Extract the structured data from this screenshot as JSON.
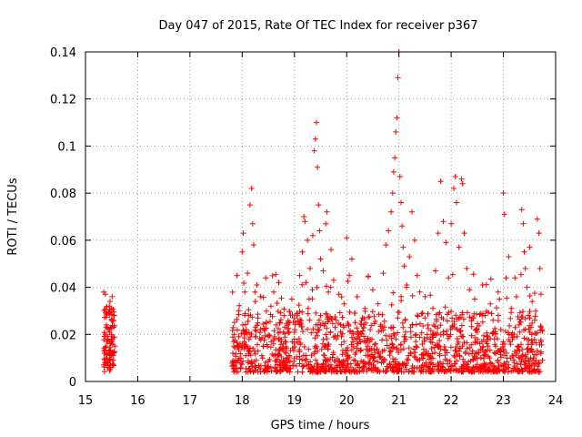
{
  "chart_data": {
    "type": "scatter",
    "title": "Day 047 of 2015, Rate Of TEC Index for receiver p367",
    "xlabel": "GPS time / hours",
    "ylabel": "ROTI / TECUs",
    "xlim": [
      15,
      24
    ],
    "ylim": [
      0,
      0.14
    ],
    "x_ticks": [
      15,
      16,
      17,
      18,
      19,
      20,
      21,
      22,
      23,
      24
    ],
    "x_tick_labels": [
      "15",
      "16",
      "17",
      "18",
      "19",
      "20",
      "21",
      "22",
      "23",
      "24"
    ],
    "y_ticks": [
      0,
      0.02,
      0.04,
      0.06,
      0.08,
      0.1,
      0.12,
      0.14
    ],
    "y_tick_labels": [
      "0",
      "0.02",
      "0.04",
      "0.06",
      "0.08",
      "0.1",
      "0.12",
      "0.14"
    ],
    "grid": true,
    "marker": "+",
    "color": "#ff0000",
    "series": [
      {
        "name": "ROTI",
        "points": [
          [
            15.35,
            0.038
          ],
          [
            15.36,
            0.012
          ],
          [
            15.37,
            0.008
          ],
          [
            15.38,
            0.02
          ],
          [
            15.39,
            0.015
          ],
          [
            15.4,
            0.024
          ],
          [
            15.41,
            0.01
          ],
          [
            15.42,
            0.006
          ],
          [
            15.43,
            0.018
          ],
          [
            15.44,
            0.029
          ],
          [
            15.45,
            0.013
          ],
          [
            15.46,
            0.021
          ],
          [
            15.47,
            0.034
          ],
          [
            15.48,
            0.016
          ],
          [
            15.49,
            0.011
          ],
          [
            15.5,
            0.026
          ],
          [
            15.51,
            0.036
          ],
          [
            15.52,
            0.019
          ],
          [
            15.53,
            0.009
          ],
          [
            15.54,
            0.023
          ],
          [
            15.55,
            0.028
          ],
          [
            15.56,
            0.015
          ],
          [
            15.38,
            0.037
          ],
          [
            15.44,
            0.022
          ],
          [
            15.5,
            0.031
          ],
          [
            17.82,
            0.012
          ],
          [
            17.85,
            0.02
          ],
          [
            17.88,
            0.008
          ],
          [
            17.9,
            0.045
          ],
          [
            17.93,
            0.03
          ],
          [
            17.96,
            0.016
          ],
          [
            18.0,
            0.055
          ],
          [
            18.02,
            0.063
          ],
          [
            18.05,
            0.038
          ],
          [
            18.08,
            0.022
          ],
          [
            18.1,
            0.046
          ],
          [
            18.12,
            0.013
          ],
          [
            18.15,
            0.075
          ],
          [
            18.18,
            0.082
          ],
          [
            18.2,
            0.067
          ],
          [
            18.22,
            0.058
          ],
          [
            18.25,
            0.034
          ],
          [
            18.28,
            0.041
          ],
          [
            18.3,
            0.027
          ],
          [
            18.35,
            0.036
          ],
          [
            18.4,
            0.015
          ],
          [
            18.45,
            0.044
          ],
          [
            18.5,
            0.019
          ],
          [
            18.55,
            0.032
          ],
          [
            18.6,
            0.011
          ],
          [
            18.65,
            0.024
          ],
          [
            18.7,
            0.042
          ],
          [
            18.75,
            0.017
          ],
          [
            18.8,
            0.028
          ],
          [
            18.85,
            0.014
          ],
          [
            18.9,
            0.021
          ],
          [
            18.95,
            0.035
          ],
          [
            19.0,
            0.018
          ],
          [
            19.05,
            0.029
          ],
          [
            19.1,
            0.045
          ],
          [
            19.15,
            0.055
          ],
          [
            19.18,
            0.07
          ],
          [
            19.2,
            0.068
          ],
          [
            19.22,
            0.042
          ],
          [
            19.25,
            0.06
          ],
          [
            19.28,
            0.035
          ],
          [
            19.3,
            0.048
          ],
          [
            19.35,
            0.062
          ],
          [
            19.38,
            0.098
          ],
          [
            19.4,
            0.103
          ],
          [
            19.42,
            0.11
          ],
          [
            19.44,
            0.091
          ],
          [
            19.46,
            0.075
          ],
          [
            19.48,
            0.064
          ],
          [
            19.5,
            0.052
          ],
          [
            19.55,
            0.047
          ],
          [
            19.6,
            0.067
          ],
          [
            19.62,
            0.072
          ],
          [
            19.65,
            0.038
          ],
          [
            19.7,
            0.056
          ],
          [
            19.75,
            0.043
          ],
          [
            19.8,
            0.026
          ],
          [
            19.85,
            0.037
          ],
          [
            19.9,
            0.019
          ],
          [
            19.95,
            0.033
          ],
          [
            20.0,
            0.061
          ],
          [
            20.05,
            0.045
          ],
          [
            20.1,
            0.052
          ],
          [
            20.15,
            0.029
          ],
          [
            20.2,
            0.036
          ],
          [
            20.25,
            0.018
          ],
          [
            20.3,
            0.027
          ],
          [
            20.35,
            0.031
          ],
          [
            20.4,
            0.015
          ],
          [
            20.45,
            0.022
          ],
          [
            20.5,
            0.039
          ],
          [
            20.55,
            0.016
          ],
          [
            20.6,
            0.033
          ],
          [
            20.65,
            0.024
          ],
          [
            20.7,
            0.046
          ],
          [
            20.75,
            0.058
          ],
          [
            20.8,
            0.064
          ],
          [
            20.85,
            0.072
          ],
          [
            20.88,
            0.08
          ],
          [
            20.9,
            0.089
          ],
          [
            20.92,
            0.095
          ],
          [
            20.94,
            0.106
          ],
          [
            20.96,
            0.112
          ],
          [
            20.98,
            0.129
          ],
          [
            21.0,
            0.14
          ],
          [
            21.02,
            0.087
          ],
          [
            21.04,
            0.076
          ],
          [
            21.06,
            0.066
          ],
          [
            21.08,
            0.057
          ],
          [
            21.1,
            0.049
          ],
          [
            21.15,
            0.041
          ],
          [
            21.2,
            0.053
          ],
          [
            21.25,
            0.072
          ],
          [
            21.3,
            0.06
          ],
          [
            21.35,
            0.045
          ],
          [
            21.4,
            0.038
          ],
          [
            21.45,
            0.029
          ],
          [
            21.5,
            0.036
          ],
          [
            21.55,
            0.024
          ],
          [
            21.6,
            0.018
          ],
          [
            21.65,
            0.031
          ],
          [
            21.7,
            0.047
          ],
          [
            21.75,
            0.063
          ],
          [
            21.8,
            0.085
          ],
          [
            21.85,
            0.068
          ],
          [
            21.9,
            0.059
          ],
          [
            21.95,
            0.044
          ],
          [
            22.0,
            0.067
          ],
          [
            22.05,
            0.082
          ],
          [
            22.08,
            0.087
          ],
          [
            22.1,
            0.076
          ],
          [
            22.15,
            0.057
          ],
          [
            22.2,
            0.086
          ],
          [
            22.22,
            0.084
          ],
          [
            22.25,
            0.063
          ],
          [
            22.3,
            0.048
          ],
          [
            22.35,
            0.039
          ],
          [
            22.4,
            0.027
          ],
          [
            22.45,
            0.035
          ],
          [
            22.5,
            0.021
          ],
          [
            22.55,
            0.016
          ],
          [
            22.6,
            0.041
          ],
          [
            22.65,
            0.028
          ],
          [
            22.7,
            0.019
          ],
          [
            22.75,
            0.033
          ],
          [
            22.8,
            0.026
          ],
          [
            22.85,
            0.015
          ],
          [
            22.9,
            0.038
          ],
          [
            22.95,
            0.022
          ],
          [
            23.0,
            0.08
          ],
          [
            23.02,
            0.071
          ],
          [
            23.05,
            0.044
          ],
          [
            23.1,
            0.053
          ],
          [
            23.15,
            0.031
          ],
          [
            23.2,
            0.019
          ],
          [
            23.25,
            0.036
          ],
          [
            23.3,
            0.024
          ],
          [
            23.35,
            0.073
          ],
          [
            23.38,
            0.067
          ],
          [
            23.4,
            0.055
          ],
          [
            23.42,
            0.048
          ],
          [
            23.45,
            0.04
          ],
          [
            23.5,
            0.057
          ],
          [
            23.55,
            0.034
          ],
          [
            23.6,
            0.026
          ],
          [
            23.65,
            0.069
          ],
          [
            23.68,
            0.063
          ],
          [
            23.7,
            0.048
          ],
          [
            23.72,
            0.037
          ],
          [
            23.74,
            0.022
          ]
        ]
      }
    ],
    "dense_band": {
      "description_hidden": true,
      "x_range": [
        17.8,
        23.75
      ],
      "y_range": [
        0.004,
        0.03
      ],
      "count": 1400
    }
  }
}
